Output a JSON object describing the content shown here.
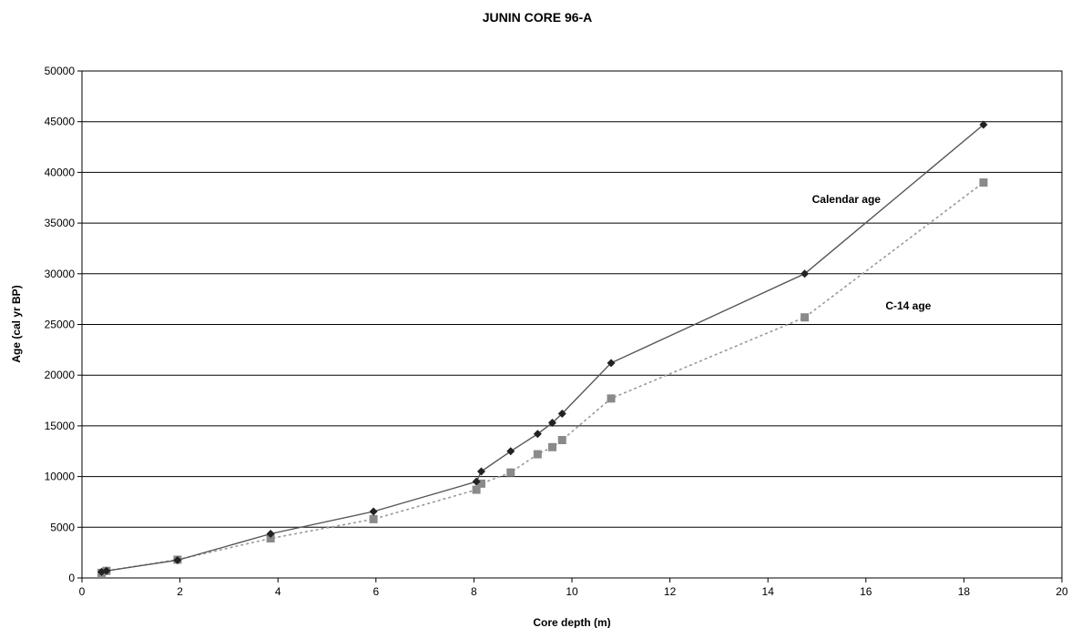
{
  "chart_data": {
    "type": "line",
    "title": "JUNIN CORE 96-A",
    "xlabel": "Core depth (m)",
    "ylabel": "Age (cal yr BP)",
    "xlim": [
      0,
      20
    ],
    "ylim": [
      0,
      50000
    ],
    "xticks": [
      "0",
      "2",
      "4",
      "6",
      "8",
      "10",
      "12",
      "14",
      "16",
      "18",
      "20"
    ],
    "yticks": [
      "0",
      "5000",
      "10000",
      "15000",
      "20000",
      "25000",
      "30000",
      "35000",
      "40000",
      "45000",
      "50000"
    ],
    "grid": "horizontal",
    "legend": "none",
    "annotations": [
      {
        "text": "Calendar age",
        "x": 14.9,
        "y": 37000
      },
      {
        "text": "C-14 age",
        "x": 16.4,
        "y": 26500
      }
    ],
    "series": [
      {
        "marker": "diamond",
        "line": "solid",
        "color": "#555555",
        "marker_color": "#222222",
        "x": [
          0.4,
          0.5,
          1.95,
          3.85,
          5.95,
          8.05,
          8.15,
          8.75,
          9.3,
          9.6,
          9.8,
          10.8,
          14.75,
          18.4
        ],
        "y": [
          600,
          700,
          1750,
          4350,
          6550,
          9500,
          10500,
          12500,
          14200,
          15300,
          16200,
          21200,
          30000,
          44700
        ]
      },
      {
        "marker": "square",
        "line": "dotted",
        "color": "#999999",
        "marker_color": "#8a8a8a",
        "x": [
          0.4,
          0.5,
          1.95,
          3.85,
          5.95,
          8.05,
          8.15,
          8.75,
          9.3,
          9.6,
          9.8,
          10.8,
          14.75,
          18.4
        ],
        "y": [
          500,
          700,
          1800,
          3900,
          5800,
          8700,
          9300,
          10400,
          12200,
          12900,
          13600,
          17700,
          25700,
          39000
        ]
      }
    ]
  }
}
